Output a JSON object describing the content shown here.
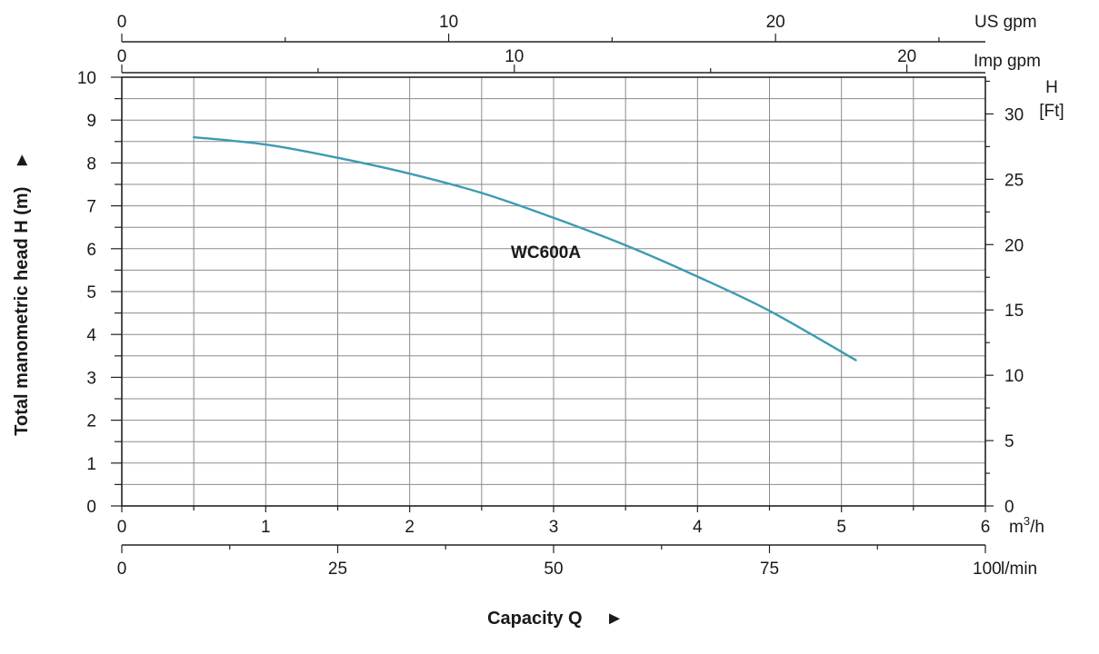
{
  "chart_data": {
    "type": "line",
    "title": "",
    "xlabel": "Capacity Q",
    "ylabel": "Total manometric head H (m)",
    "axis_arrow": "►",
    "xlim": [
      0,
      6
    ],
    "ylim": [
      0,
      10
    ],
    "grid": true,
    "x_unit": "m³/h",
    "x_ticks": [
      0,
      1,
      2,
      3,
      4,
      5,
      6
    ],
    "y_ticks": [
      0,
      1,
      2,
      3,
      4,
      5,
      6,
      7,
      8,
      9,
      10
    ],
    "series": [
      {
        "name": "WC600A",
        "color": "#3d9bb2",
        "x": [
          0.5,
          1.0,
          1.5,
          2.0,
          2.5,
          3.0,
          3.5,
          4.0,
          4.5,
          5.1
        ],
        "y": [
          8.6,
          8.43,
          8.12,
          7.75,
          7.3,
          6.72,
          6.08,
          5.35,
          4.55,
          3.4
        ]
      }
    ],
    "secondary_axes": {
      "lmin": {
        "unit": "l/min",
        "max": 100,
        "ticks": [
          0,
          25,
          50,
          75,
          100
        ]
      },
      "us_gpm": {
        "unit": "US  gpm",
        "max": 26.42,
        "ticks": [
          0,
          10,
          20
        ]
      },
      "imp_gpm": {
        "unit": "Imp gpm",
        "max": 22.0,
        "ticks": [
          0,
          10,
          20
        ]
      },
      "feet": {
        "unit_top": "H",
        "unit_bottom": "[Ft]",
        "max": 32.81,
        "ticks": [
          0,
          5,
          10,
          15,
          20,
          25,
          30
        ]
      }
    }
  }
}
